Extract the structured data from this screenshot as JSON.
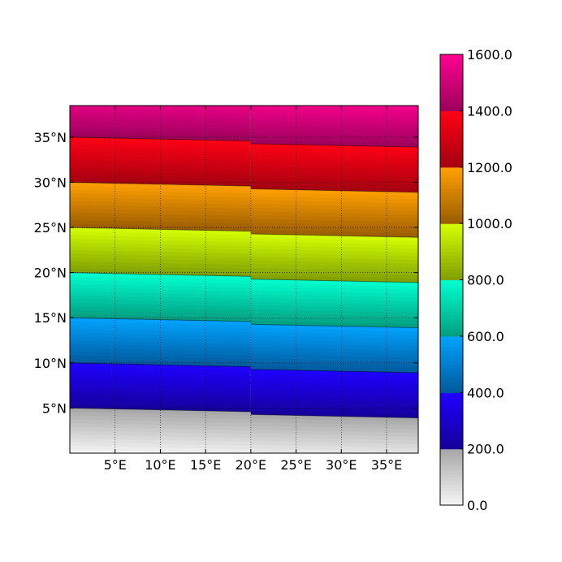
{
  "chart_data": {
    "type": "heatmap",
    "title": "",
    "xlabel": "",
    "ylabel": "",
    "xlim": [
      0,
      38.5
    ],
    "ylim": [
      0,
      38.5
    ],
    "x_tick_values": [
      5,
      10,
      15,
      20,
      25,
      30,
      35
    ],
    "x_tick_labels": [
      "5°E",
      "10°E",
      "15°E",
      "20°E",
      "25°E",
      "30°E",
      "35°E"
    ],
    "y_tick_values": [
      5,
      10,
      15,
      20,
      25,
      30,
      35
    ],
    "y_tick_labels": [
      "5°N",
      "10°N",
      "15°N",
      "20°N",
      "25°N",
      "30°N",
      "35°N"
    ],
    "grid": true,
    "grid_style": "dotted",
    "field": {
      "description_source": "filled contour of value increasing northward, ~40 units per degree latitude",
      "value_at_lat_0": 0,
      "value_per_degree_lat": 40,
      "eastward_tilt_deg_lat_at_x_max": -0.8,
      "seam_longitude": 20,
      "seam_offset_deg_lat": -0.3
    },
    "colorbar": {
      "min": 0.0,
      "max": 1600.0,
      "tick_values": [
        0,
        200,
        400,
        600,
        800,
        1000,
        1200,
        1400,
        1600
      ],
      "tick_labels": [
        "0.0",
        "200.0",
        "400.0",
        "600.0",
        "800.0",
        "1000.0",
        "1200.0",
        "1400.0",
        "1600.0"
      ],
      "bands": [
        {
          "from": 0,
          "to": 200,
          "color_low": "#f6f6f6",
          "color_high": "#a6a6a6"
        },
        {
          "from": 200,
          "to": 400,
          "color_low": "#15009a",
          "color_high": "#1f00ff"
        },
        {
          "from": 400,
          "to": 600,
          "color_low": "#005a9c",
          "color_high": "#00a3ff"
        },
        {
          "from": 600,
          "to": 800,
          "color_low": "#009e80",
          "color_high": "#00ffcf"
        },
        {
          "from": 800,
          "to": 1000,
          "color_low": "#7f9e00",
          "color_high": "#d4ff00"
        },
        {
          "from": 1000,
          "to": 1200,
          "color_low": "#9a5c00",
          "color_high": "#ffa000"
        },
        {
          "from": 1200,
          "to": 1400,
          "color_low": "#a30010",
          "color_high": "#ff0014"
        },
        {
          "from": 1400,
          "to": 1600,
          "color_low": "#9c005c",
          "color_high": "#ff0090"
        }
      ]
    }
  }
}
